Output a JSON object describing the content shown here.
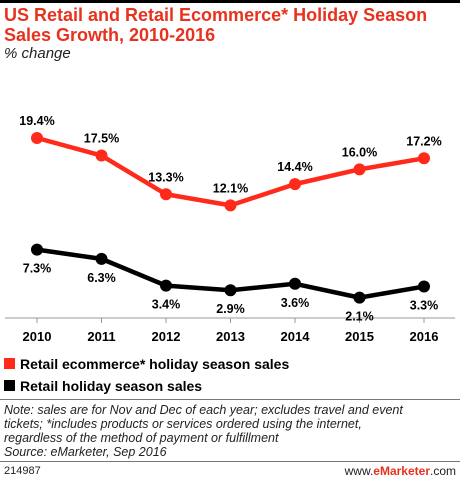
{
  "title": "US Retail and Retail Ecommerce* Holiday Season Sales Growth, 2010-2016",
  "subtitle": "% change",
  "chart_data": {
    "type": "line",
    "categories": [
      "2010",
      "2011",
      "2012",
      "2013",
      "2014",
      "2015",
      "2016"
    ],
    "ylim": [
      0,
      22
    ],
    "grid": false,
    "legend_placement": "bottom",
    "series": [
      {
        "name": "Retail ecommerce* holiday season sales",
        "color": "#ff2a1a",
        "values": [
          19.4,
          17.5,
          13.3,
          12.1,
          14.4,
          16.0,
          17.2
        ],
        "labels": [
          "19.4%",
          "17.5%",
          "13.3%",
          "12.1%",
          "14.4%",
          "16.0%",
          "17.2%"
        ]
      },
      {
        "name": "Retail holiday season sales",
        "color": "#000000",
        "values": [
          7.3,
          6.3,
          3.4,
          2.9,
          3.6,
          2.1,
          3.3
        ],
        "labels": [
          "7.3%",
          "6.3%",
          "3.4%",
          "2.9%",
          "3.6%",
          "2.1%",
          "3.3%"
        ]
      }
    ]
  },
  "note_lines": [
    "Note: sales are for Nov and Dec of each year; excludes travel and event",
    "tickets; *includes products or services ordered using the internet,",
    "regardless of the method of payment or fulfillment",
    "Source: eMarketer, Sep 2016"
  ],
  "footer": {
    "chart_id": "214987",
    "brand_prefix": "www.",
    "brand_accent": "eMarketer",
    "brand_suffix": ".com"
  }
}
